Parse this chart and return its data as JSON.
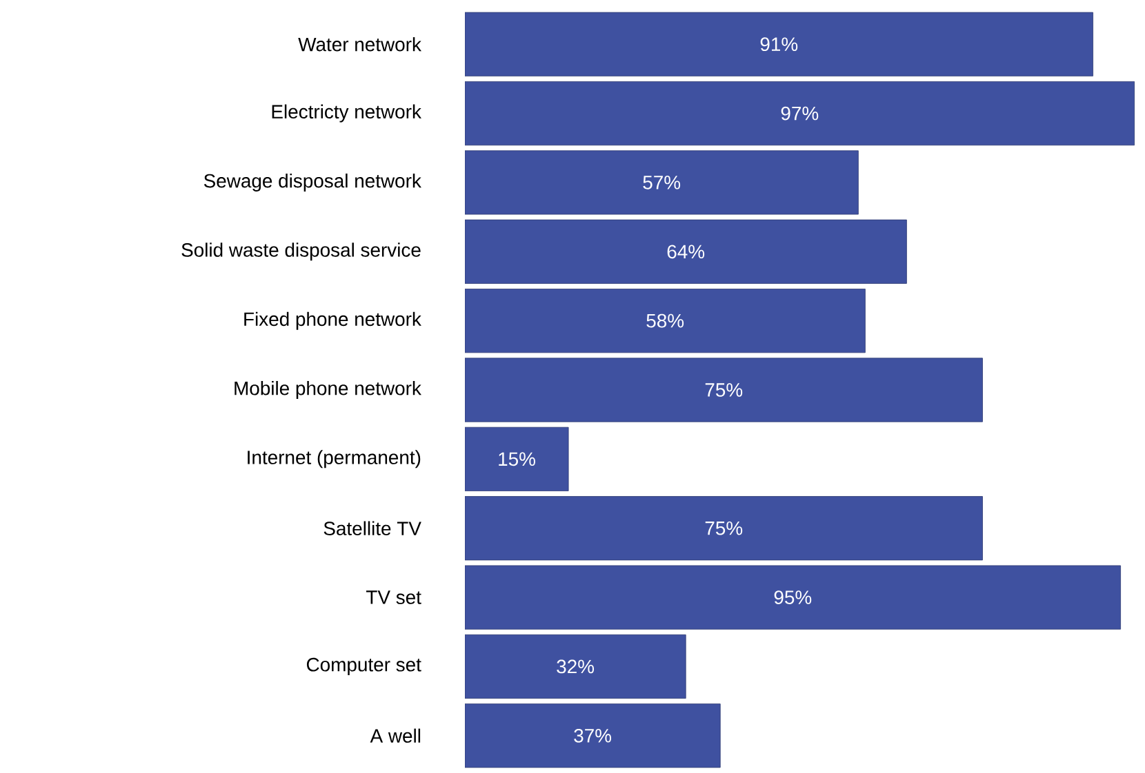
{
  "chart_data": {
    "type": "bar",
    "orientation": "horizontal",
    "tick_labels": "y",
    "categories": [
      "Water network",
      "Electricty network",
      "Sewage disposal network",
      "Solid waste disposal service",
      "Fixed phone network",
      "Mobile phone network",
      "Internet (permanent)",
      "Satellite TV",
      "TV set",
      "Computer set",
      "A well"
    ],
    "values": [
      91,
      97,
      57,
      64,
      58,
      75,
      15,
      75,
      95,
      32,
      37
    ],
    "value_labels": [
      "91%",
      "97%",
      "57%",
      "64%",
      "58%",
      "75%",
      "15%",
      "75%",
      "95%",
      "32%",
      "37%"
    ],
    "color": "#3f51a0"
  }
}
